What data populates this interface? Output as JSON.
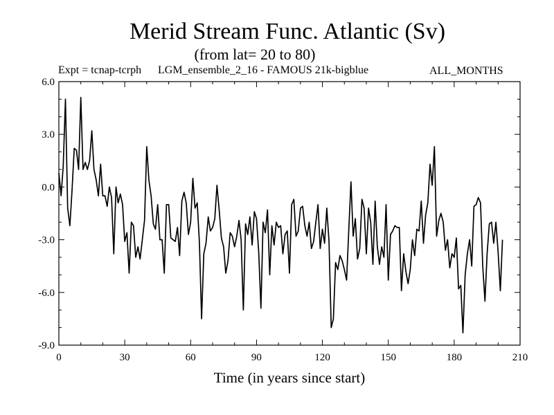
{
  "chart_data": {
    "type": "line",
    "title": "Merid Stream Func. Atlantic (Sv)",
    "subtitle": "(from lat= 20 to 80)",
    "expt_label": "Expt = tcnap-tcrph",
    "expt_name": "LGM_ensemble_2_16 - FAMOUS 21k-bigblue",
    "months_label": "ALL_MONTHS",
    "xlabel": "Time (in years since start)",
    "ylabel": "",
    "xlim": [
      0,
      210
    ],
    "ylim": [
      -9.0,
      6.0
    ],
    "x_ticks": [
      0,
      30,
      60,
      90,
      120,
      150,
      180,
      210
    ],
    "x_tick_labels": [
      "0",
      "30",
      "60",
      "90",
      "120",
      "150",
      "180",
      "210"
    ],
    "y_ticks": [
      6.0,
      3.0,
      0.0,
      -3.0,
      -6.0,
      -9.0
    ],
    "y_tick_labels": [
      "6.0",
      "3.0",
      "0.0",
      "-3.0",
      "-6.0",
      "-9.0"
    ],
    "x_start": 0,
    "x_step": 1,
    "series": [
      {
        "name": "Merid Stream Func. Atlantic",
        "values": [
          0.8,
          -0.5,
          1.2,
          5.0,
          -1.2,
          -2.2,
          -0.2,
          2.2,
          2.1,
          1.0,
          5.1,
          1.0,
          1.4,
          1.0,
          1.5,
          3.2,
          1.0,
          0.4,
          -0.5,
          1.3,
          -0.5,
          -0.5,
          -1.1,
          0.0,
          -0.6,
          -3.8,
          0.0,
          -0.9,
          -0.4,
          -1.0,
          -3.1,
          -2.6,
          -4.9,
          -2.0,
          -2.2,
          -4.0,
          -3.4,
          -4.1,
          -3.0,
          -1.9,
          2.3,
          0.4,
          -0.5,
          -2.1,
          -2.4,
          -1.0,
          -3.0,
          -3.0,
          -4.9,
          -1.0,
          -1.0,
          -2.9,
          -3.0,
          -3.1,
          -2.3,
          -3.9,
          -0.8,
          -0.3,
          -0.9,
          -2.7,
          -2.0,
          0.5,
          -1.2,
          -0.9,
          -3.2,
          -7.5,
          -3.8,
          -3.2,
          -1.7,
          -2.5,
          -2.3,
          -1.8,
          0.1,
          -1.3,
          -2.9,
          -3.4,
          -4.9,
          -4.2,
          -2.6,
          -2.8,
          -3.4,
          -2.8,
          -1.9,
          -3.0,
          -7.0,
          -2.1,
          -2.7,
          -1.7,
          -3.3,
          -1.4,
          -1.8,
          -3.7,
          -6.9,
          -2.0,
          -2.6,
          -1.3,
          -5.0,
          -2.2,
          -3.3,
          -2.0,
          -2.3,
          -2.2,
          -3.8,
          -2.7,
          -2.5,
          -4.9,
          -1.0,
          -0.7,
          -2.8,
          -2.5,
          -1.2,
          -1.1,
          -2.2,
          -2.8,
          -2.0,
          -3.5,
          -3.1,
          -2.0,
          -1.0,
          -3.5,
          -2.4,
          -3.2,
          -1.2,
          -3.1,
          -8.0,
          -7.5,
          -4.3,
          -4.7,
          -3.9,
          -4.2,
          -4.7,
          -5.3,
          -2.5,
          0.3,
          -2.8,
          -1.8,
          -4.1,
          -3.5,
          -0.7,
          -1.2,
          -3.8,
          -1.2,
          -2.0,
          -4.4,
          -0.8,
          -3.4,
          -4.4,
          -3.4,
          -4.0,
          -1.0,
          -5.3,
          -2.7,
          -2.5,
          -2.2,
          -2.3,
          -2.3,
          -5.9,
          -3.8,
          -4.8,
          -5.5,
          -4.7,
          -3.0,
          -3.9,
          -2.4,
          -2.5,
          -0.8,
          -3.2,
          -1.6,
          -0.9,
          1.3,
          0.1,
          2.3,
          -2.8,
          -1.9,
          -1.5,
          -2.0,
          -3.6,
          -3.0,
          -4.6,
          -3.8,
          -4.0,
          -2.9,
          -5.8,
          -5.6,
          -8.3,
          -5.0,
          -3.8,
          -3.0,
          -4.5,
          -1.1,
          -1.0,
          -0.6,
          -0.9,
          -4.5,
          -6.5,
          -3.8,
          -2.1,
          -2.0,
          -3.2,
          -2.0,
          -3.7,
          -5.9,
          -3.0
        ]
      }
    ],
    "line_color": "#000000",
    "background": "#ffffff"
  }
}
